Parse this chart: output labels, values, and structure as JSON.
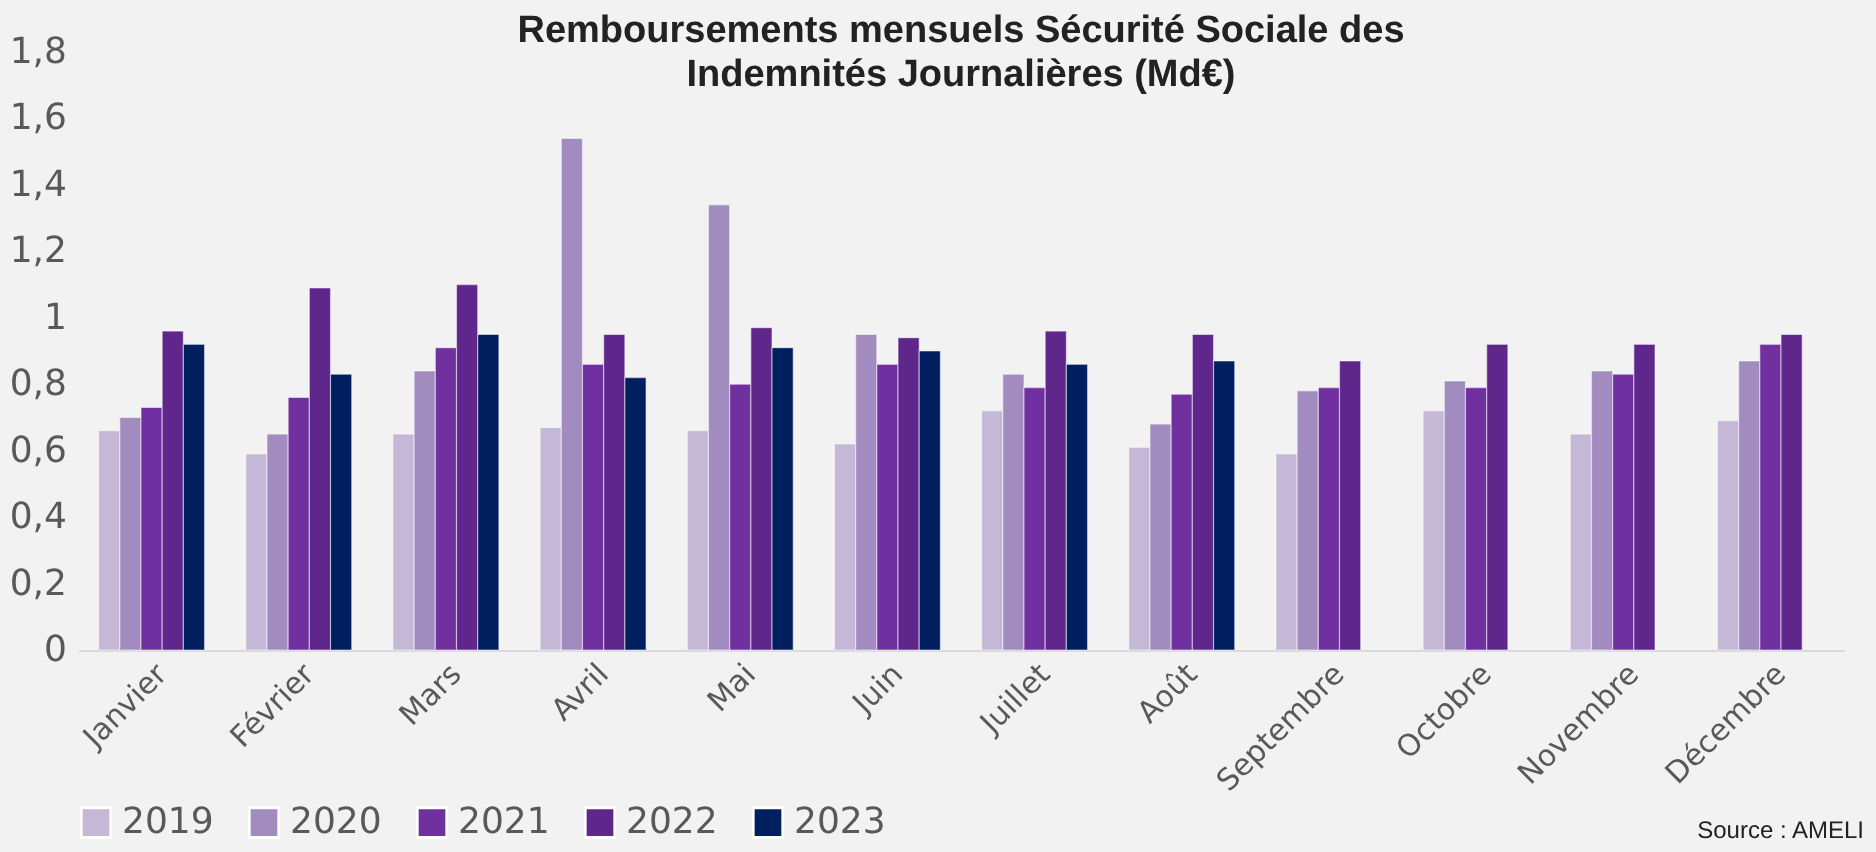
{
  "chart_data": {
    "type": "bar",
    "title": "Remboursements mensuels Sécurité Sociale des Indemnités Journalières (Md€)",
    "categories": [
      "Janvier",
      "Février",
      "Mars",
      "Avril",
      "Mai",
      "Juin",
      "Juillet",
      "Août",
      "Septembre",
      "Octobre",
      "Novembre",
      "Décembre"
    ],
    "series": [
      {
        "name": "2019",
        "color": "#c5b7d6",
        "values": [
          0.66,
          0.59,
          0.65,
          0.67,
          0.66,
          0.62,
          0.72,
          0.61,
          0.59,
          0.72,
          0.65,
          0.69
        ]
      },
      {
        "name": "2020",
        "color": "#a18bbf",
        "values": [
          0.7,
          0.65,
          0.84,
          1.54,
          1.34,
          0.95,
          0.83,
          0.68,
          0.78,
          0.81,
          0.84,
          0.87
        ]
      },
      {
        "name": "2021",
        "color": "#7030a0",
        "values": [
          0.73,
          0.76,
          0.91,
          0.86,
          0.8,
          0.86,
          0.79,
          0.77,
          0.79,
          0.79,
          0.83,
          0.92
        ]
      },
      {
        "name": "2022",
        "color": "#5f278c",
        "values": [
          0.96,
          1.09,
          1.1,
          0.95,
          0.97,
          0.94,
          0.96,
          0.95,
          0.87,
          0.92,
          0.92,
          0.95
        ]
      },
      {
        "name": "2023",
        "color": "#001f5f",
        "values": [
          0.92,
          0.83,
          0.95,
          0.82,
          0.91,
          0.9,
          0.86,
          0.87,
          null,
          null,
          null,
          null
        ]
      }
    ],
    "ylim": [
      0,
      1.8
    ],
    "yticks": [
      0,
      {
        "value": 0.2,
        "label": "0,2"
      },
      {
        "value": 0.4,
        "label": "0,4"
      },
      {
        "value": 0.6,
        "label": "0,6"
      },
      {
        "value": 0.8,
        "label": "0,8"
      },
      1,
      {
        "value": 1.2,
        "label": "1,2"
      },
      {
        "value": 1.4,
        "label": "1,4"
      },
      {
        "value": 1.6,
        "label": "1,6"
      },
      {
        "value": 1.8,
        "label": "1,8"
      }
    ],
    "grid": false,
    "legend": "bottom",
    "annotations": [
      "Source : AMELI"
    ]
  }
}
